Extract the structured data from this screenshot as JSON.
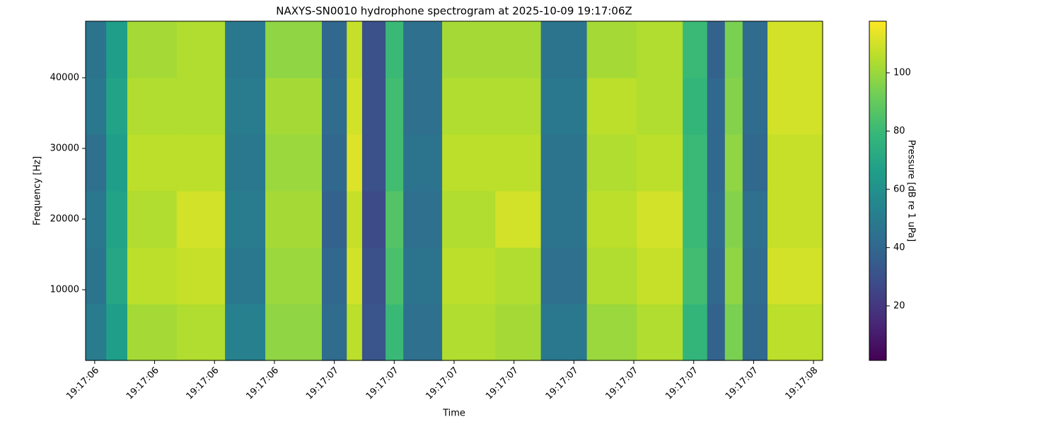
{
  "chart_data": {
    "type": "heatmap",
    "title": "NAXYS-SN0010 hydrophone spectrogram at 2025-10-09 19:17:06Z",
    "xlabel": "Time",
    "ylabel": "Frequency [Hz]",
    "colorbar_label": "Pressure [dB re 1 uPa]",
    "cmap": "viridis",
    "x_edges": [
      6.481,
      6.524,
      6.568,
      6.671,
      6.772,
      6.856,
      6.974,
      7.026,
      7.058,
      7.107,
      7.144,
      7.225,
      7.336,
      7.431,
      7.527,
      7.631,
      7.727,
      7.778,
      7.815,
      7.852,
      7.904,
      8.019
    ],
    "y_edges": [
      0,
      8000,
      16000,
      24000,
      32000,
      40000,
      48000
    ],
    "z": [
      [
        50,
        66,
        102,
        104,
        52,
        98,
        42,
        106,
        32,
        80,
        44,
        104,
        102,
        48,
        100,
        104,
        78,
        38,
        94,
        40,
        106
      ],
      [
        46,
        70,
        106,
        108,
        48,
        100,
        40,
        110,
        30,
        84,
        46,
        106,
        104,
        44,
        104,
        108,
        82,
        40,
        98,
        42,
        110
      ],
      [
        48,
        68,
        104,
        110,
        50,
        102,
        38,
        108,
        28,
        86,
        44,
        104,
        110,
        46,
        106,
        110,
        80,
        42,
        96,
        44,
        108
      ],
      [
        44,
        66,
        106,
        106,
        48,
        100,
        40,
        112,
        30,
        82,
        46,
        106,
        106,
        46,
        104,
        106,
        80,
        40,
        98,
        40,
        108
      ],
      [
        48,
        68,
        104,
        104,
        50,
        102,
        42,
        110,
        30,
        82,
        44,
        104,
        104,
        48,
        106,
        104,
        78,
        40,
        96,
        42,
        110
      ],
      [
        46,
        66,
        102,
        104,
        48,
        98,
        40,
        108,
        30,
        80,
        44,
        102,
        102,
        46,
        102,
        104,
        80,
        38,
        94,
        42,
        110
      ]
    ],
    "xlim": [
      6.481,
      8.019
    ],
    "xticks": [
      {
        "value": 6.5,
        "label": "19:17:06"
      },
      {
        "value": 6.625,
        "label": "19:17:06"
      },
      {
        "value": 6.75,
        "label": "19:17:06"
      },
      {
        "value": 6.875,
        "label": "19:17:06"
      },
      {
        "value": 7.0,
        "label": "19:17:07"
      },
      {
        "value": 7.125,
        "label": "19:17:07"
      },
      {
        "value": 7.25,
        "label": "19:17:07"
      },
      {
        "value": 7.375,
        "label": "19:17:07"
      },
      {
        "value": 7.5,
        "label": "19:17:07"
      },
      {
        "value": 7.625,
        "label": "19:17:07"
      },
      {
        "value": 7.75,
        "label": "19:17:07"
      },
      {
        "value": 7.875,
        "label": "19:17:07"
      },
      {
        "value": 8.0,
        "label": "19:17:08"
      }
    ],
    "ylim": [
      0,
      48000
    ],
    "yticks": [
      10000,
      20000,
      30000,
      40000
    ],
    "clim": [
      1.3,
      117.7
    ],
    "cticks": [
      20,
      40,
      60,
      80,
      100
    ]
  }
}
